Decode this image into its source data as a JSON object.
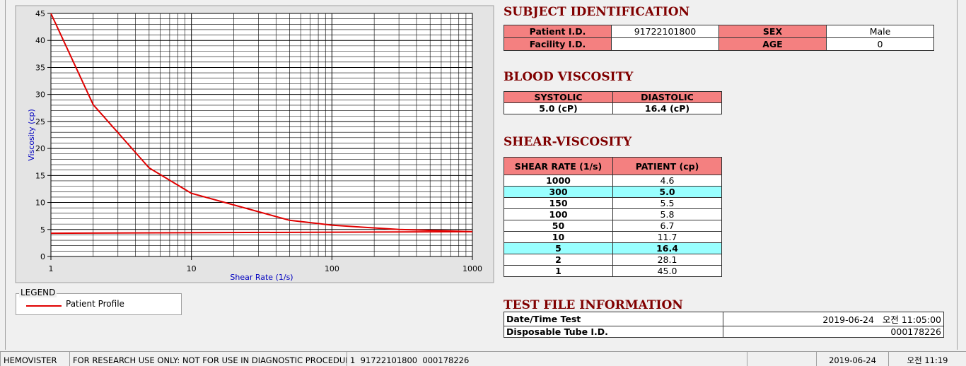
{
  "chart_data": {
    "type": "line",
    "x_label": "Shear Rate (1/s)",
    "y_label": "Viscosity (cp)",
    "x_log": true,
    "xlim": [
      1,
      1000
    ],
    "xticks": [
      1,
      10,
      100,
      1000
    ],
    "x_minor_grid": [
      2,
      3,
      4,
      5,
      6,
      7,
      8,
      9,
      20,
      30,
      40,
      50,
      60,
      70,
      80,
      90,
      200,
      300,
      400,
      500,
      600,
      700,
      800,
      900
    ],
    "ylim": [
      0,
      45
    ],
    "yticks": [
      0,
      5,
      10,
      15,
      20,
      25,
      30,
      35,
      40,
      45
    ],
    "y_minor_grid": [
      1,
      2,
      3,
      4,
      6,
      7,
      8,
      9,
      11,
      12,
      13,
      14,
      16,
      17,
      18,
      19,
      21,
      22,
      23,
      24,
      26,
      27,
      28,
      29,
      31,
      32,
      33,
      34,
      36,
      37,
      38,
      39,
      41,
      42,
      43,
      44
    ],
    "grid": true,
    "legend_title": "LEGEND",
    "series": [
      {
        "name": "Patient Profile",
        "color": "#e00000",
        "x": [
          1,
          2,
          5,
          10,
          50,
          100,
          150,
          300,
          1000
        ],
        "values": [
          45.0,
          28.1,
          16.4,
          11.7,
          6.7,
          5.8,
          5.5,
          5.0,
          4.6
        ]
      },
      {
        "color": "#e00000",
        "x": [
          1,
          1000
        ],
        "values": [
          4.3,
          4.6
        ]
      }
    ]
  },
  "subject": {
    "title": "SUBJECT IDENTIFICATION",
    "rows": [
      [
        "Patient I.D.",
        "91722101800",
        "SEX",
        "Male"
      ],
      [
        "Facility I.D.",
        null,
        "AGE",
        "0"
      ]
    ]
  },
  "blood_viscosity": {
    "title": "BLOOD VISCOSITY",
    "headers": [
      "SYSTOLIC",
      "DIASTOLIC"
    ],
    "values": [
      "5.0 (cP)",
      "16.4 (cP)"
    ]
  },
  "shear_viscosity": {
    "title": "SHEAR-VISCOSITY",
    "headers": [
      "SHEAR RATE (1/s)",
      "PATIENT (cp)"
    ],
    "rows": [
      [
        "1000",
        "4.6"
      ],
      [
        "300",
        "5.0"
      ],
      [
        "150",
        "5.5"
      ],
      [
        "100",
        "5.8"
      ],
      [
        "50",
        "6.7"
      ],
      [
        "10",
        "11.7"
      ],
      [
        "5",
        "16.4"
      ],
      [
        "2",
        "28.1"
      ],
      [
        "1",
        "45.0"
      ]
    ],
    "highlighted_rows": [
      1,
      6
    ]
  },
  "test_file": {
    "title": "TEST FILE INFORMATION",
    "rows": [
      [
        "Date/Time Test",
        "2019-06-24   오전 11:05:00"
      ],
      [
        "Disposable Tube I.D.",
        "000178226"
      ]
    ]
  },
  "status_bar": [
    "HEMOVISTER",
    "FOR RESEARCH USE ONLY: NOT FOR USE IN DIAGNOSTIC PROCEDURES",
    "1  91722101800  000178226",
    null,
    "2019-06-24",
    "오전 11:19"
  ]
}
